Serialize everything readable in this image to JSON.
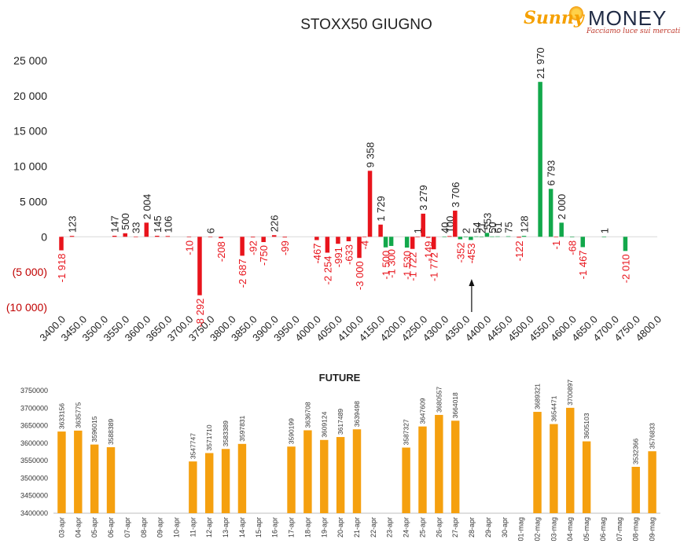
{
  "logo": {
    "sunny": "Sunny",
    "money": "MONEY",
    "tagline": "Facciamo luce sui mercati"
  },
  "chart_data": [
    {
      "type": "bar",
      "title": "STOXX50 GIUGNO",
      "xlabel": "",
      "ylabel": "",
      "ylim": [
        -10000,
        25000
      ],
      "y_ticks": [
        {
          "v": 25000,
          "label": "25 000"
        },
        {
          "v": 20000,
          "label": "20 000"
        },
        {
          "v": 15000,
          "label": "15 000"
        },
        {
          "v": 10000,
          "label": "10 000"
        },
        {
          "v": 5000,
          "label": "5 000"
        },
        {
          "v": 0,
          "label": "0"
        },
        {
          "v": -5000,
          "label": "(5 000)"
        },
        {
          "v": -10000,
          "label": "(10 000)"
        }
      ],
      "categories": [
        "3400.0",
        "3450.0",
        "3500.0",
        "3550.0",
        "3600.0",
        "3650.0",
        "3700.0",
        "3750.0",
        "3800.0",
        "3850.0",
        "3900.0",
        "3950.0",
        "4000.0",
        "4050.0",
        "4100.0",
        "4150.0",
        "4200.0",
        "4250.0",
        "4300.0",
        "4350.0",
        "4400.0",
        "4450.0",
        "4500.0",
        "4550.0",
        "4600.0",
        "4650.0",
        "4700.0",
        "4750.0",
        "4800.0"
      ],
      "colors": {
        "red": "#e8141c",
        "green": "#12a84b"
      },
      "bars": [
        {
          "x": 3400,
          "value": -1918,
          "label": "-1 918",
          "color": "red"
        },
        {
          "x": 3425,
          "value": 123,
          "label": "123",
          "color": "red"
        },
        {
          "x": 3525,
          "value": 147,
          "label": "147",
          "color": "red"
        },
        {
          "x": 3550,
          "value": 500,
          "label": "500",
          "color": "red"
        },
        {
          "x": 3575,
          "value": 33,
          "label": "33",
          "color": "red"
        },
        {
          "x": 3600,
          "value": 2004,
          "label": "2 004",
          "color": "red"
        },
        {
          "x": 3625,
          "value": 145,
          "label": "145",
          "color": "red"
        },
        {
          "x": 3650,
          "value": 106,
          "label": "106",
          "color": "red"
        },
        {
          "x": 3700,
          "value": -10,
          "label": "-10",
          "color": "red"
        },
        {
          "x": 3725,
          "value": -8292,
          "label": "-8 292",
          "color": "red"
        },
        {
          "x": 3750,
          "value": 6,
          "label": "6",
          "color": "red"
        },
        {
          "x": 3775,
          "value": -208,
          "label": "-208",
          "color": "red"
        },
        {
          "x": 3825,
          "value": -2687,
          "label": "-2 687",
          "color": "red"
        },
        {
          "x": 3850,
          "value": -92,
          "label": "-92",
          "color": "red"
        },
        {
          "x": 3875,
          "value": -750,
          "label": "-750",
          "color": "red"
        },
        {
          "x": 3900,
          "value": 226,
          "label": "226",
          "color": "red"
        },
        {
          "x": 3925,
          "value": -99,
          "label": "-99",
          "color": "red"
        },
        {
          "x": 4000,
          "value": -467,
          "label": "-467",
          "color": "red"
        },
        {
          "x": 4025,
          "value": -2254,
          "label": "-2 254",
          "color": "red"
        },
        {
          "x": 4050,
          "value": -991,
          "label": "-991",
          "color": "red"
        },
        {
          "x": 4075,
          "value": -633,
          "label": "-633",
          "color": "red"
        },
        {
          "x": 4100,
          "value": -3000,
          "label": "-3 000",
          "color": "red"
        },
        {
          "x": 4112,
          "value": -4,
          "label": "-4",
          "color": "red"
        },
        {
          "x": 4125,
          "value": 9358,
          "label": "9 358",
          "color": "red"
        },
        {
          "x": 4150,
          "value": 1729,
          "label": "1 729",
          "color": "red"
        },
        {
          "x": 4162,
          "value": -1500,
          "label": "-1 500",
          "color": "green"
        },
        {
          "x": 4175,
          "value": -1300,
          "label": "-1 300",
          "color": "green"
        },
        {
          "x": 4212,
          "value": -1530,
          "label": "-1 530",
          "color": "green"
        },
        {
          "x": 4225,
          "value": -1722,
          "label": "-1 722",
          "color": "red"
        },
        {
          "x": 4237,
          "value": 1,
          "label": "1",
          "color": "red"
        },
        {
          "x": 4250,
          "value": 3279,
          "label": "3 279",
          "color": "red"
        },
        {
          "x": 4262,
          "value": -149,
          "label": "-149",
          "color": "red"
        },
        {
          "x": 4275,
          "value": -1772,
          "label": "-1 772",
          "color": "red"
        },
        {
          "x": 4300,
          "value": 40,
          "label": "40",
          "color": "green"
        },
        {
          "x": 4312,
          "value": 100,
          "label": "100",
          "color": "red"
        },
        {
          "x": 4325,
          "value": 3706,
          "label": "3 706",
          "color": "red"
        },
        {
          "x": 4337,
          "value": -352,
          "label": "-352",
          "color": "green"
        },
        {
          "x": 4350,
          "value": 2,
          "label": "2",
          "color": "green"
        },
        {
          "x": 4362,
          "value": -453,
          "label": "-453",
          "color": "green"
        },
        {
          "x": 4375,
          "value": 54,
          "label": "54",
          "color": "green"
        },
        {
          "x": 4387,
          "value": 21,
          "label": "21",
          "color": "green"
        },
        {
          "x": 4400,
          "value": 553,
          "label": "553",
          "color": "green"
        },
        {
          "x": 4412,
          "value": 50,
          "label": "50",
          "color": "green"
        },
        {
          "x": 4425,
          "value": 61,
          "label": "61",
          "color": "green"
        },
        {
          "x": 4450,
          "value": 75,
          "label": "75",
          "color": "green"
        },
        {
          "x": 4475,
          "value": -122,
          "label": "-122",
          "color": "red"
        },
        {
          "x": 4487,
          "value": 128,
          "label": "128",
          "color": "green"
        },
        {
          "x": 4525,
          "value": 21970,
          "label": "21 970",
          "color": "green"
        },
        {
          "x": 4550,
          "value": 6793,
          "label": "6 793",
          "color": "green"
        },
        {
          "x": 4562,
          "value": -1,
          "label": "-1",
          "color": "red"
        },
        {
          "x": 4575,
          "value": 2000,
          "label": "2 000",
          "color": "green"
        },
        {
          "x": 4600,
          "value": -68,
          "label": "-68",
          "color": "green"
        },
        {
          "x": 4625,
          "value": -1467,
          "label": "-1 467",
          "color": "green"
        },
        {
          "x": 4675,
          "value": 1,
          "label": "1",
          "color": "green"
        },
        {
          "x": 4725,
          "value": -2010,
          "label": "-2 010",
          "color": "green"
        }
      ],
      "annotations": [
        {
          "type": "arrow",
          "x": 4375,
          "direction": "up"
        }
      ]
    },
    {
      "type": "bar",
      "title": "FUTURE",
      "xlabel": "",
      "ylabel": "",
      "ylim": [
        3400000,
        3750000
      ],
      "y_ticks": [
        3400000,
        3450000,
        3500000,
        3550000,
        3600000,
        3650000,
        3700000,
        3750000
      ],
      "color": "#f5a00f",
      "categories": [
        "03-apr",
        "04-apr",
        "05-apr",
        "06-apr",
        "07-apr",
        "08-apr",
        "09-apr",
        "10-apr",
        "11-apr",
        "12-apr",
        "13-apr",
        "14-apr",
        "15-apr",
        "16-apr",
        "17-apr",
        "18-apr",
        "19-apr",
        "20-apr",
        "21-apr",
        "22-apr",
        "23-apr",
        "24-apr",
        "25-apr",
        "26-apr",
        "27-apr",
        "28-apr",
        "29-apr",
        "30-apr",
        "01-mag",
        "02-mag",
        "03-mag",
        "04-mag",
        "05-mag",
        "06-mag",
        "07-mag",
        "08-mag",
        "09-mag"
      ],
      "values": [
        3633156,
        3635775,
        3596015,
        3588389,
        null,
        null,
        null,
        null,
        3547747,
        3571710,
        3583389,
        3597831,
        null,
        null,
        3590199,
        3636708,
        3609124,
        3617489,
        3639498,
        null,
        null,
        3587327,
        3647609,
        3680557,
        3664018,
        null,
        null,
        null,
        null,
        3689321,
        3654471,
        3700897,
        3605103,
        null,
        null,
        3532366,
        3576833
      ]
    }
  ]
}
